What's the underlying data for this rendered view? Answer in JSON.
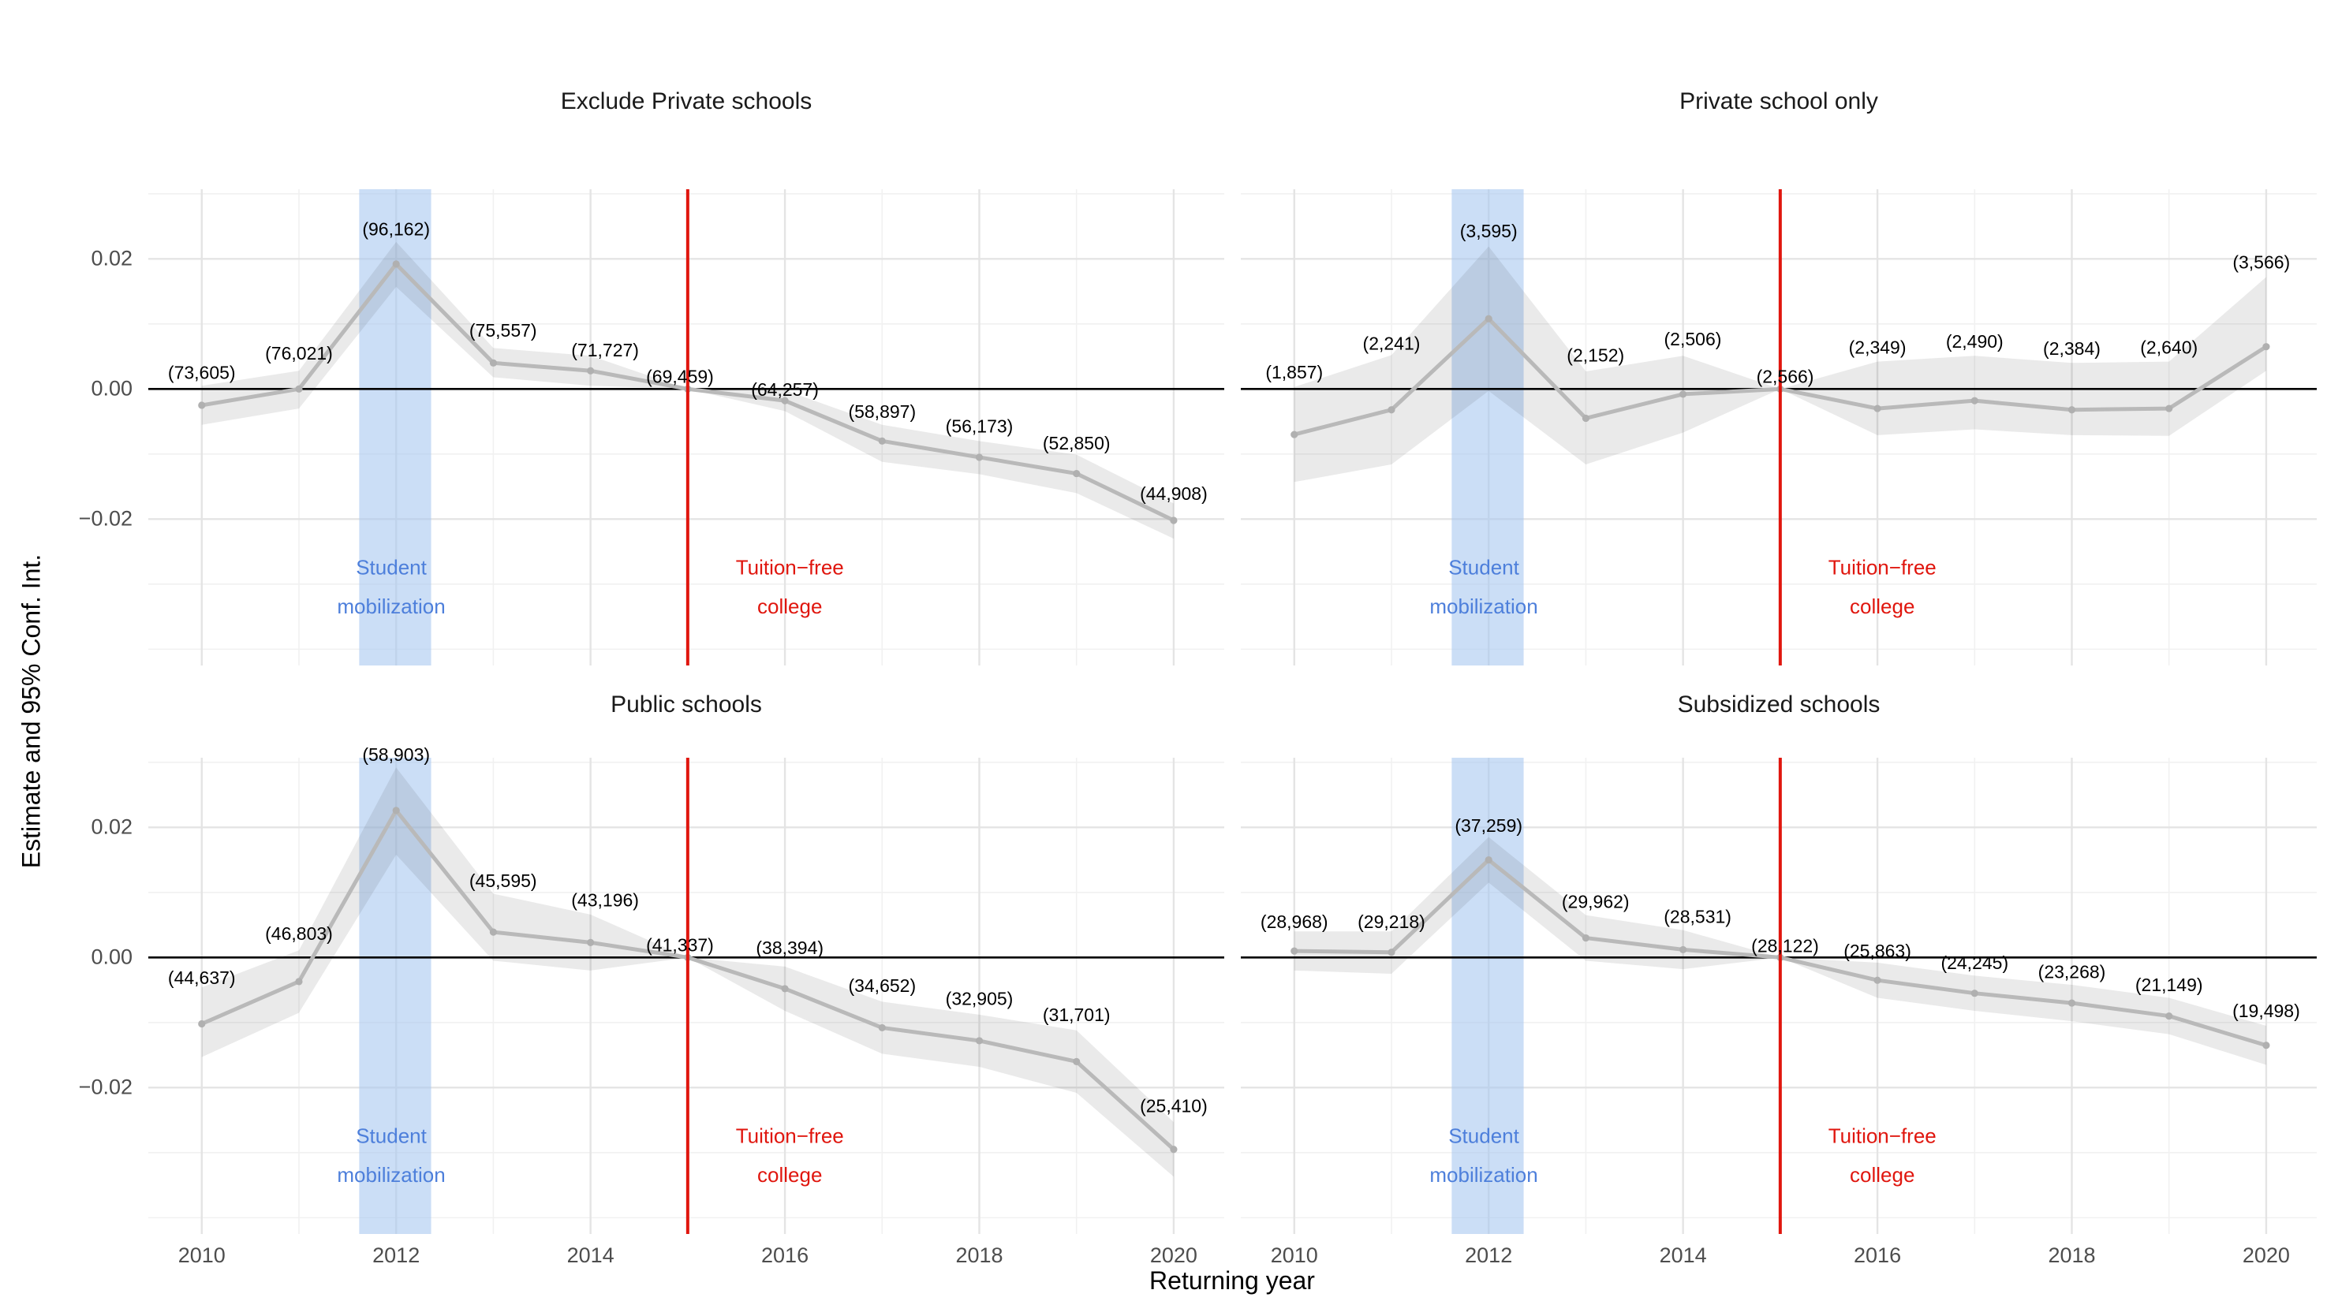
{
  "figure": {
    "x_axis_title": "Returning year",
    "y_axis_title": "Estimate and 95% Conf. Int."
  },
  "axes": {
    "x_major": [
      2010,
      2012,
      2014,
      2016,
      2018,
      2020
    ],
    "x_minor": [
      2011,
      2013,
      2015,
      2017,
      2019
    ],
    "x_tick_labels": [
      "2010",
      "2012",
      "2014",
      "2016",
      "2018",
      "2020"
    ],
    "y_major": [
      0.02,
      0,
      -0.02
    ],
    "y_minor": [
      0.03,
      0.01,
      -0.01,
      -0.03,
      -0.04
    ],
    "y_tick_labels": [
      "0.02",
      "0.00",
      "−0.02"
    ],
    "xlim": [
      2009.45,
      2020.52
    ],
    "ylim": [
      -0.0425,
      0.0307
    ],
    "grid": true,
    "legend": "none"
  },
  "colors": {
    "line": "#b9b9b9",
    "point": "#b0b0b0",
    "ribbon": "rgba(50,50,50,0.10)",
    "zero_line": "#000000",
    "grid_major": "#e4e4e4",
    "grid_minor": "#f1f1f1",
    "band_fill": "#a8c8f0",
    "blue_text": "#4d7fdb",
    "red": "#e0160e",
    "title_text": "#1a1a1a",
    "tick_text": "#4d4d4d",
    "label_text": "#000000"
  },
  "annotations": {
    "band": {
      "x_start": 2011.62,
      "x_end": 2012.36,
      "opacity": 0.6
    },
    "band_label": {
      "lines": [
        "Student",
        "mobilization"
      ],
      "x": 2011.95,
      "line1_y": -0.0274,
      "line2_y": -0.0334
    },
    "event_line": {
      "x": 2015
    },
    "event_label": {
      "lines": [
        "Tuition−free",
        "college"
      ],
      "x": 2016.05,
      "line1_y": -0.0274,
      "line2_y": -0.0334
    }
  },
  "chart_data": [
    {
      "type": "line",
      "title": "Exclude Private schools",
      "x": [
        2010,
        2011,
        2012,
        2013,
        2014,
        2015,
        2016,
        2017,
        2018,
        2019,
        2020
      ],
      "estimate": [
        -0.0025,
        0.0,
        0.0192,
        0.004,
        0.0028,
        0,
        -0.0018,
        -0.008,
        -0.0105,
        -0.013,
        -0.0202
      ],
      "ci_low": [
        -0.0055,
        -0.003,
        0.0157,
        0.0018,
        0.0005,
        0,
        -0.0034,
        -0.0112,
        -0.0131,
        -0.016,
        -0.023
      ],
      "ci_high": [
        0.0005,
        0.0028,
        0.0226,
        0.0063,
        0.0051,
        0,
        -0.0002,
        -0.0055,
        -0.008,
        -0.0101,
        -0.0176
      ],
      "point_labels": [
        "(73,605)",
        "(76,021)",
        "(96,162)",
        "(75,557)",
        "(71,727)",
        "(69,459)",
        "(64,257)",
        "(58,897)",
        "(56,173)",
        "(52,850)",
        "(44,908)"
      ],
      "label_y": [
        0.0025,
        0.0055,
        0.0246,
        0.009,
        0.006,
        0.0019,
        -0.0001,
        -0.0035,
        -0.0057,
        -0.0083,
        -0.0161
      ],
      "label_dx": [
        0,
        0,
        0,
        0.1,
        0.15,
        -0.08,
        0,
        0,
        0,
        0,
        0
      ]
    },
    {
      "type": "line",
      "title": "Private school only",
      "x": [
        2010,
        2011,
        2012,
        2013,
        2014,
        2015,
        2016,
        2017,
        2018,
        2019,
        2020
      ],
      "estimate": [
        -0.007,
        -0.0032,
        0.0108,
        -0.0045,
        -0.0008,
        0,
        -0.003,
        -0.0018,
        -0.0032,
        -0.003,
        0.0065
      ],
      "ci_low": [
        -0.0143,
        -0.0116,
        -0.0003,
        -0.0116,
        -0.0067,
        0,
        -0.0071,
        -0.0062,
        -0.0071,
        -0.0072,
        0.0028
      ],
      "ci_high": [
        0.0003,
        0.0052,
        0.0219,
        0.0027,
        0.0051,
        0,
        0.0042,
        0.0051,
        0.004,
        0.0042,
        0.0172
      ],
      "point_labels": [
        "(1,857)",
        "(2,241)",
        "(3,595)",
        "(2,152)",
        "(2,506)",
        "(2,566)",
        "(2,349)",
        "(2,490)",
        "(2,384)",
        "(2,640)",
        "(3,566)"
      ],
      "label_y": [
        0.0026,
        0.007,
        0.0243,
        0.0052,
        0.0077,
        0.0019,
        0.0064,
        0.0073,
        0.0062,
        0.0064,
        0.0195
      ],
      "label_dx": [
        0,
        0,
        0,
        0.1,
        0.1,
        0.05,
        0,
        0,
        0,
        0,
        -0.05
      ]
    },
    {
      "type": "line",
      "title": "Public schools",
      "x": [
        2010,
        2011,
        2012,
        2013,
        2014,
        2015,
        2016,
        2017,
        2018,
        2019,
        2020
      ],
      "estimate": [
        -0.0102,
        -0.0037,
        0.0226,
        0.0039,
        0.0023,
        0,
        -0.0048,
        -0.0108,
        -0.0128,
        -0.016,
        -0.0295
      ],
      "ci_low": [
        -0.0153,
        -0.0085,
        0.0158,
        -0.0005,
        -0.002,
        0,
        -0.0082,
        -0.0148,
        -0.0168,
        -0.0208,
        -0.0337
      ],
      "ci_high": [
        -0.0046,
        0.0011,
        0.0292,
        0.0098,
        0.0066,
        0,
        -0.0014,
        -0.0068,
        -0.0088,
        -0.0112,
        -0.0253
      ],
      "point_labels": [
        "(44,637)",
        "(46,803)",
        "(58,903)",
        "(45,595)",
        "(43,196)",
        "(41,337)",
        "(38,394)",
        "(34,652)",
        "(32,905)",
        "(31,701)",
        "(25,410)"
      ],
      "label_y": [
        -0.0031,
        0.0037,
        0.0312,
        0.0118,
        0.0088,
        0.0019,
        0.0015,
        -0.0043,
        -0.0063,
        -0.0088,
        -0.0228
      ],
      "label_dx": [
        0,
        0,
        0,
        0.1,
        0.15,
        -0.08,
        0.05,
        0,
        0,
        0,
        0
      ]
    },
    {
      "type": "line",
      "title": "Subsidized schools",
      "x": [
        2010,
        2011,
        2012,
        2013,
        2014,
        2015,
        2016,
        2017,
        2018,
        2019,
        2020
      ],
      "estimate": [
        0.001,
        0.0008,
        0.015,
        0.003,
        0.0012,
        0,
        -0.0035,
        -0.0055,
        -0.007,
        -0.009,
        -0.0135
      ],
      "ci_low": [
        -0.002,
        -0.0025,
        0.0115,
        -0.0005,
        -0.0018,
        0,
        -0.0062,
        -0.0082,
        -0.0098,
        -0.0118,
        -0.0165
      ],
      "ci_high": [
        0.004,
        0.004,
        0.0185,
        0.0065,
        0.0042,
        0,
        -0.0008,
        -0.0028,
        -0.0042,
        -0.0062,
        -0.0105
      ],
      "point_labels": [
        "(28,968)",
        "(29,218)",
        "(37,259)",
        "(29,962)",
        "(28,531)",
        "(28,122)",
        "(25,863)",
        "(24,245)",
        "(23,268)",
        "(21,149)",
        "(19,498)"
      ],
      "label_y": [
        0.0055,
        0.0055,
        0.0203,
        0.0086,
        0.0063,
        0.0018,
        0.001,
        -0.0008,
        -0.0022,
        -0.0042,
        -0.0082
      ],
      "label_dx": [
        0,
        0,
        0,
        0.1,
        0.15,
        0.05,
        0,
        0,
        0,
        0,
        0
      ]
    }
  ]
}
